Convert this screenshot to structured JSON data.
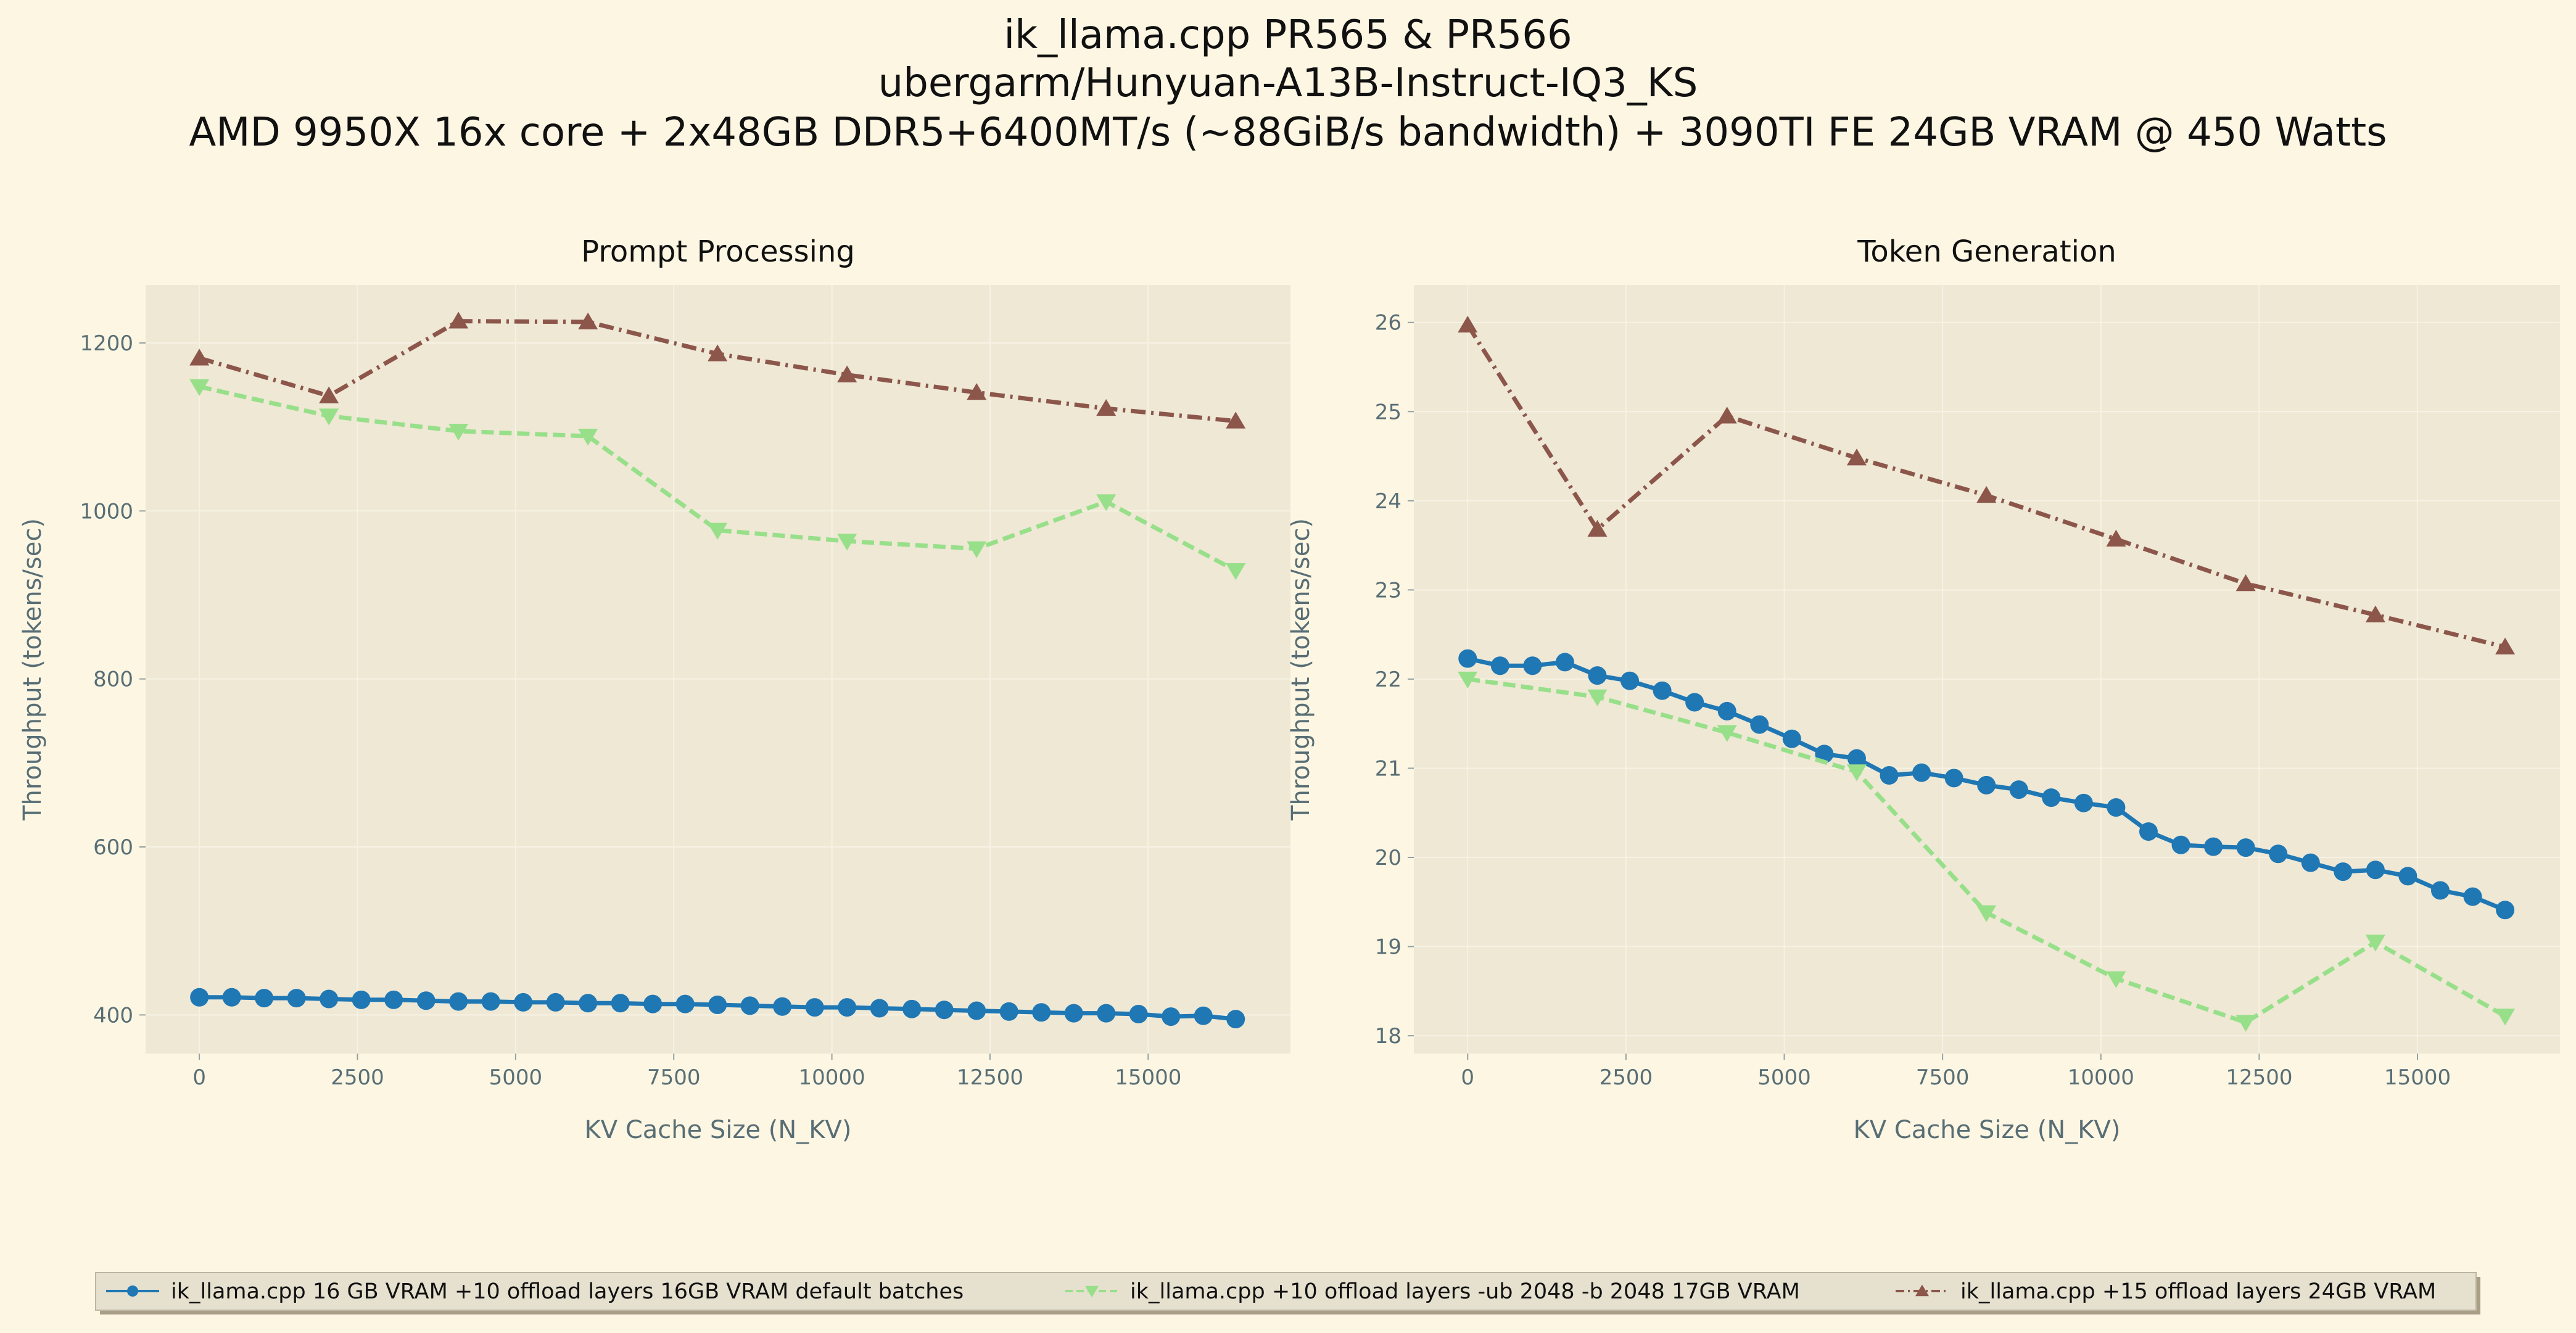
{
  "suptitle": {
    "line1": "ik_llama.cpp PR565 & PR566",
    "line2": "ubergarm/Hunyuan-A13B-Instruct-IQ3_KS",
    "line3": "AMD 9950X 16x core + 2x48GB DDR5+6400MT/s (~88GiB/s bandwidth) + 3090TI FE 24GB VRAM @ 450 Watts"
  },
  "legend": [
    {
      "label": "ik_llama.cpp 16 GB VRAM +10 offload layers 16GB VRAM default batches",
      "color": "#1f77b4",
      "marker": "circle",
      "dash": "solid"
    },
    {
      "label": "ik_llama.cpp +10 offload layers -ub 2048 -b 2048 17GB VRAM",
      "color": "#98df8a",
      "marker": "triangle-down",
      "dash": "dashed"
    },
    {
      "label": "ik_llama.cpp +15 offload layers 24GB VRAM",
      "color": "#8c564b",
      "marker": "triangle-up",
      "dash": "dashdot"
    }
  ],
  "chart_data": [
    {
      "type": "line",
      "title": "Prompt Processing",
      "xlabel": "KV Cache Size (N_KV)",
      "ylabel": "Throughput (tokens/sec)",
      "xlim": [
        -850,
        17250
      ],
      "ylim": [
        354,
        1269
      ],
      "xticks": [
        0,
        2500,
        5000,
        7500,
        10000,
        12500,
        15000
      ],
      "yticks": [
        400,
        600,
        800,
        1000,
        1200
      ],
      "grid": true,
      "series": [
        {
          "name": "ik_llama.cpp 16 GB VRAM +10 offload layers 16GB VRAM default batches",
          "color": "#1f77b4",
          "marker": "circle",
          "dash": "solid",
          "x": [
            0,
            512,
            1024,
            1536,
            2048,
            2560,
            3072,
            3584,
            4096,
            4608,
            5120,
            5632,
            6144,
            6656,
            7168,
            7680,
            8192,
            8704,
            9216,
            9728,
            10240,
            10752,
            11264,
            11776,
            12288,
            12800,
            13312,
            13824,
            14336,
            14848,
            15360,
            15872,
            16384
          ],
          "y": [
            421,
            421,
            420,
            420,
            419,
            418,
            418,
            417,
            416,
            416,
            415,
            415,
            414,
            414,
            413,
            413,
            412,
            411,
            410,
            409,
            409,
            408,
            407,
            406,
            405,
            404,
            403,
            402,
            402,
            401,
            398,
            399,
            395
          ]
        },
        {
          "name": "ik_llama.cpp +10 offload layers -ub 2048 -b 2048 17GB VRAM",
          "color": "#98df8a",
          "marker": "triangle-down",
          "dash": "dashed",
          "x": [
            0,
            2048,
            4096,
            6144,
            8192,
            10240,
            12288,
            14336,
            16384
          ],
          "y": [
            1148,
            1113,
            1095,
            1089,
            977,
            964,
            955,
            1011,
            929
          ]
        },
        {
          "name": "ik_llama.cpp +15 offload layers 24GB VRAM",
          "color": "#8c564b",
          "marker": "triangle-up",
          "dash": "dashdot",
          "x": [
            0,
            2048,
            4096,
            6144,
            8192,
            10240,
            12288,
            14336,
            16384
          ],
          "y": [
            1182,
            1137,
            1226,
            1225,
            1187,
            1162,
            1141,
            1122,
            1107
          ]
        }
      ]
    },
    {
      "type": "line",
      "title": "Token Generation",
      "xlabel": "KV Cache Size (N_KV)",
      "ylabel": "Throughput (tokens/sec)",
      "xlim": [
        -850,
        17250
      ],
      "ylim": [
        17.8,
        26.42
      ],
      "xticks": [
        0,
        2500,
        5000,
        7500,
        10000,
        12500,
        15000
      ],
      "yticks": [
        18,
        19,
        20,
        21,
        22,
        23,
        24,
        25,
        26
      ],
      "grid": true,
      "series": [
        {
          "name": "ik_llama.cpp 16 GB VRAM +10 offload layers 16GB VRAM default batches",
          "color": "#1f77b4",
          "marker": "circle",
          "dash": "solid",
          "x": [
            0,
            512,
            1024,
            1536,
            2048,
            2560,
            3072,
            3584,
            4096,
            4608,
            5120,
            5632,
            6144,
            6656,
            7168,
            7680,
            8192,
            8704,
            9216,
            9728,
            10240,
            10752,
            11264,
            11776,
            12288,
            12800,
            13312,
            13824,
            14336,
            14848,
            15360,
            15872,
            16384
          ],
          "y": [
            22.23,
            22.15,
            22.15,
            22.19,
            22.04,
            21.98,
            21.87,
            21.74,
            21.64,
            21.49,
            21.33,
            21.16,
            21.11,
            20.92,
            20.95,
            20.89,
            20.81,
            20.76,
            20.67,
            20.61,
            20.56,
            20.29,
            20.14,
            20.12,
            20.11,
            20.04,
            19.94,
            19.84,
            19.86,
            19.79,
            19.63,
            19.56,
            19.41
          ]
        },
        {
          "name": "ik_llama.cpp +10 offload layers -ub 2048 -b 2048 17GB VRAM",
          "color": "#98df8a",
          "marker": "triangle-down",
          "dash": "dashed",
          "x": [
            0,
            2048,
            4096,
            6144,
            8192,
            10240,
            12288,
            14336,
            16384
          ],
          "y": [
            22.0,
            21.8,
            21.4,
            20.96,
            19.38,
            18.64,
            18.15,
            19.05,
            18.22
          ]
        },
        {
          "name": "ik_llama.cpp +15 offload layers 24GB VRAM",
          "color": "#8c564b",
          "marker": "triangle-up",
          "dash": "dashdot",
          "x": [
            0,
            2048,
            4096,
            6144,
            8192,
            10240,
            12288,
            14336,
            16384
          ],
          "y": [
            25.97,
            23.68,
            24.95,
            24.48,
            24.06,
            23.57,
            23.07,
            22.72,
            22.36
          ]
        }
      ]
    }
  ]
}
